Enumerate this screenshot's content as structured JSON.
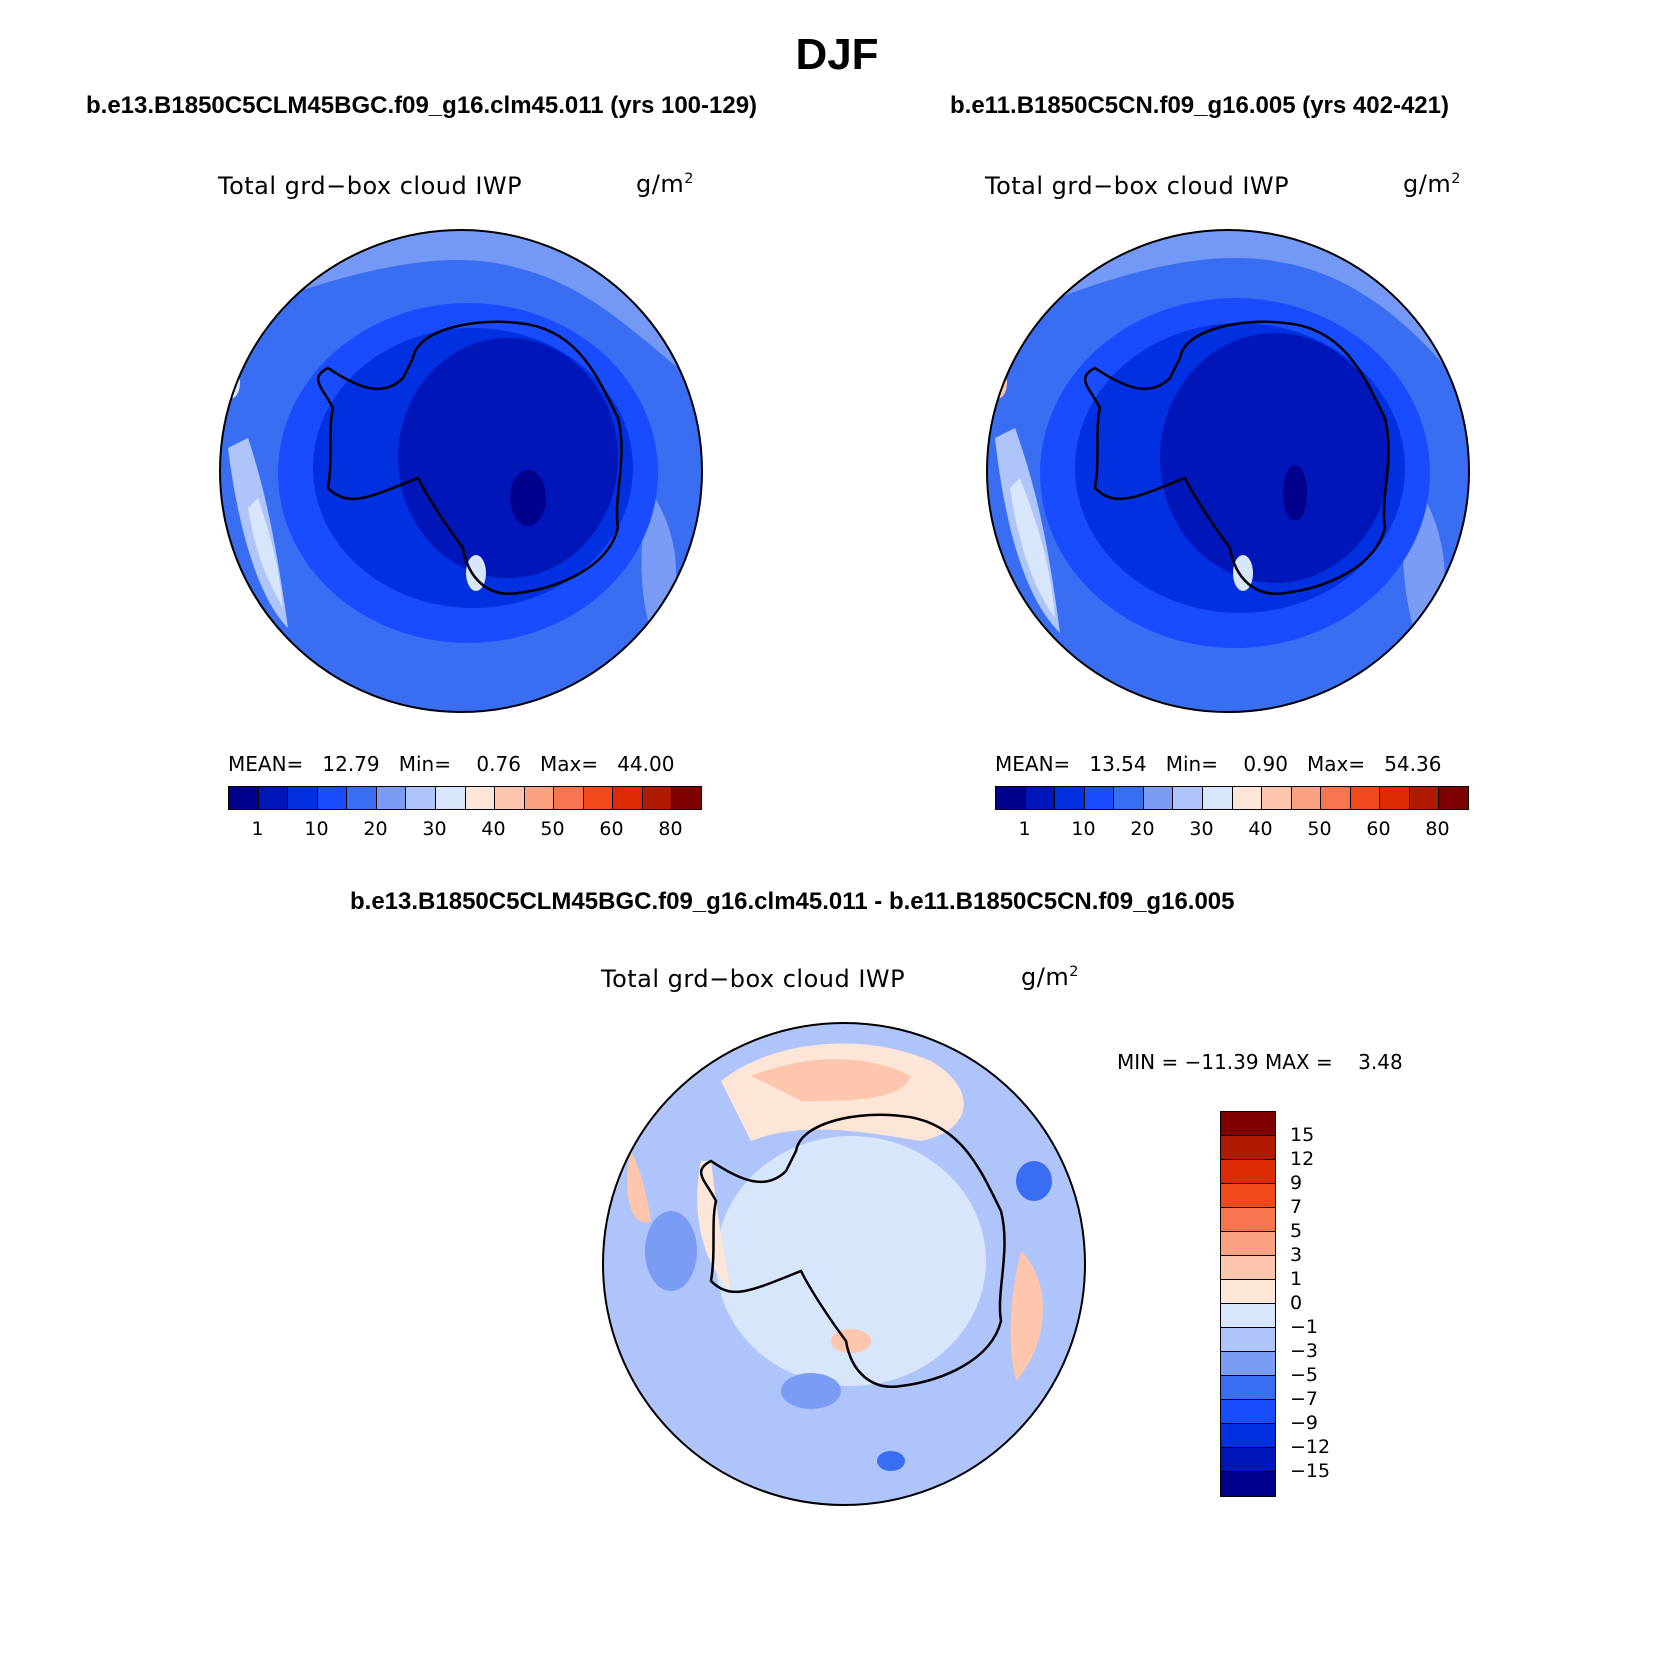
{
  "figure": {
    "title": "DJF",
    "variable": "Total grd−box cloud IWP",
    "units_base": "g/m",
    "units_exp": "2"
  },
  "panels": [
    {
      "case": "b.e13.B1850C5CLM45BGC.f09_g16.clm45.011 (yrs 100-129)",
      "mean_label": "MEAN=",
      "mean": "12.79",
      "min_label": "Min=",
      "min": "0.76",
      "max_label": "Max=",
      "max": "44.00"
    },
    {
      "case": "b.e11.B1850C5CN.f09_g16.005 (yrs 402-421)",
      "mean_label": "MEAN=",
      "mean": "13.54",
      "min_label": "Min=",
      "min": "0.90",
      "max_label": "Max=",
      "max": "54.36"
    }
  ],
  "diff": {
    "case": "b.e13.B1850C5CLM45BGC.f09_g16.clm45.011 - b.e11.B1850C5CN.f09_g16.005",
    "min_label": "MIN =",
    "min": "−11.39",
    "max_label": "MAX =",
    "max": "3.48"
  },
  "colorbars": {
    "abs_colors": [
      "#00008c",
      "#0016b8",
      "#0030e0",
      "#1a4cff",
      "#3a6ef2",
      "#7b9cf5",
      "#aec4fb",
      "#d7e6fb",
      "#fde6d8",
      "#fdc6ad",
      "#fba283",
      "#f7764f",
      "#f04a1c",
      "#dc2a02",
      "#b01a00",
      "#7f0000"
    ],
    "abs_ticks": [
      "1",
      "10",
      "20",
      "30",
      "40",
      "50",
      "60",
      "80"
    ],
    "diff_colors": [
      "#7f0000",
      "#b01a00",
      "#dc2a02",
      "#f04a1c",
      "#f7764f",
      "#fba283",
      "#fdc6ad",
      "#fde6d8",
      "#d7e6fb",
      "#aec4fb",
      "#7b9cf5",
      "#3a6ef2",
      "#1a4cff",
      "#0030e0",
      "#0016b8",
      "#00008c"
    ],
    "diff_ticks": [
      "15",
      "12",
      "9",
      "7",
      "5",
      "3",
      "1",
      "0",
      "−1",
      "−3",
      "−5",
      "−7",
      "−9",
      "−12",
      "−15"
    ]
  }
}
